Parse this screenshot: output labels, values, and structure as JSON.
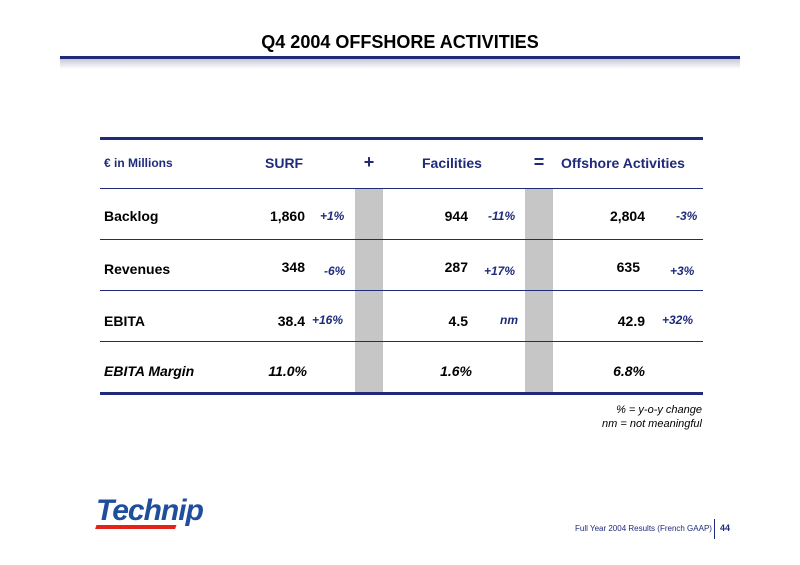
{
  "header": {
    "title": "Q4 2004 OFFSHORE ACTIVITIES"
  },
  "table": {
    "columns": {
      "unit_label": "€ in Millions",
      "surf": "SURF",
      "plus": "+",
      "facilities": "Facilities",
      "equals": "=",
      "offshore": "Offshore Activities"
    },
    "rows": [
      {
        "label": "Backlog",
        "surf": "1,860",
        "surf_chg": "+1%",
        "facilities": "944",
        "facilities_chg": "-11%",
        "offshore": "2,804",
        "offshore_chg": "-3%"
      },
      {
        "label": "Revenues",
        "surf": "348",
        "surf_chg": "-6%",
        "facilities": "287",
        "facilities_chg": "+17%",
        "offshore": "635",
        "offshore_chg": "+3%"
      },
      {
        "label": "EBITA",
        "surf": "38.4",
        "surf_chg": "+16%",
        "facilities": "4.5",
        "facilities_chg": "nm",
        "offshore": "42.9",
        "offshore_chg": "+32%"
      },
      {
        "label": "EBITA Margin",
        "surf": "11.0%",
        "surf_chg": "",
        "facilities": "1.6%",
        "facilities_chg": "",
        "offshore": "6.8%",
        "offshore_chg": ""
      }
    ]
  },
  "notes": {
    "line1": "% = y-o-y change",
    "line2": "nm = not meaningful"
  },
  "logo": {
    "text": "Technip",
    "colors": {
      "blue": "#1f4e9c",
      "red": "#e2231a"
    }
  },
  "footer": {
    "text": "Full Year 2004 Results (French GAAP)",
    "page_number": "44"
  },
  "colors": {
    "accent": "#1f2b7a",
    "gray_column": "#c6c6c6"
  }
}
